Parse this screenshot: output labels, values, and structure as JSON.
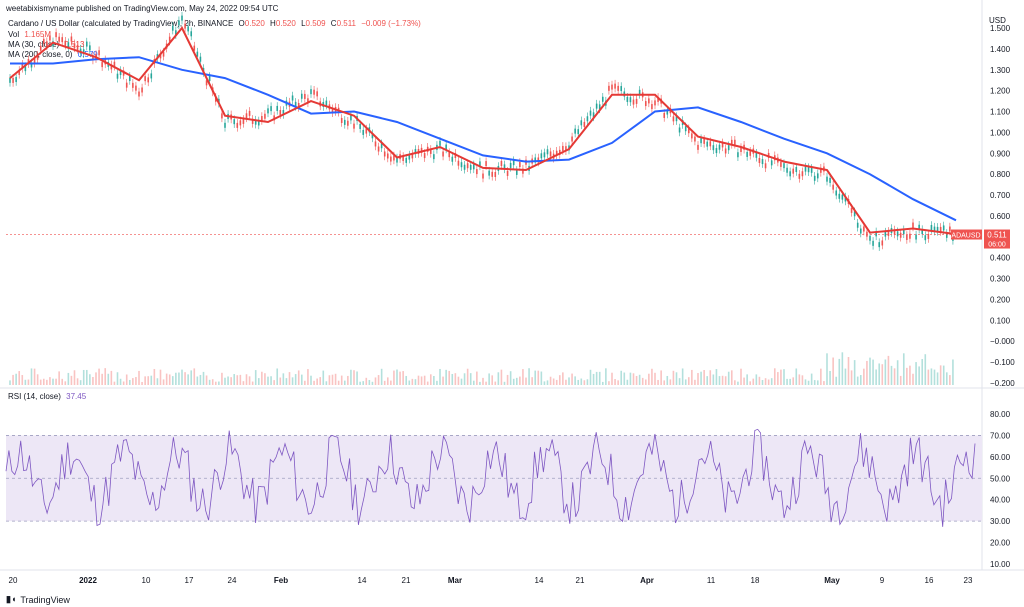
{
  "header": {
    "published_line": "weetabixismyname published on TradingView.com, May 24, 2022 09:54 UTC"
  },
  "legend": {
    "title": "Cardano / US Dollar (calculated by TradingView), 2h, BINANCE",
    "o_label": "O",
    "o": "0.520",
    "h_label": "H",
    "h": "0.520",
    "l_label": "L",
    "l": "0.509",
    "c_label": "C",
    "c": "0.511",
    "chg": "−0.009 (−1.73%)",
    "vol_label": "Vol",
    "vol": "1.165M",
    "ma30_label": "MA (30, close)",
    "ma30": "0.513",
    "ma200_label": "MA (200, close, 0)",
    "ma200": "0.579",
    "rsi_label": "RSI (14, close)",
    "rsi": "37.45"
  },
  "price_tag": {
    "symbol": "ADAUSD",
    "price": "0.511",
    "countdown": "06:00"
  },
  "colors": {
    "ma30": "#e53935",
    "ma200": "#2962ff",
    "rsi": "#7e57c2",
    "up": "#26a69a",
    "down": "#ef5350",
    "rsi_band": "#ede7f6"
  },
  "footer": {
    "brand": "TradingView"
  },
  "chart_data": {
    "type": "line",
    "currency_label": "USD",
    "x_ticks": [
      "20",
      "2022",
      "10",
      "17",
      "24",
      "Feb",
      "14",
      "21",
      "Mar",
      "14",
      "21",
      "Apr",
      "11",
      "18",
      "May",
      "9",
      "16",
      "23"
    ],
    "price_axis": {
      "ticks": [
        "1.500",
        "1.400",
        "1.300",
        "1.200",
        "1.100",
        "1.000",
        "0.900",
        "0.800",
        "0.700",
        "0.600",
        "0.500",
        "0.400",
        "0.300",
        "0.200",
        "0.100",
        "−0.000",
        "−0.100",
        "−0.200"
      ],
      "ylim": [
        -0.2,
        1.5
      ]
    },
    "rsi_axis": {
      "ticks": [
        "80.00",
        "70.00",
        "60.00",
        "50.00",
        "40.00",
        "30.00",
        "20.00",
        "10.00"
      ],
      "ylim": [
        10,
        80
      ],
      "band": [
        30,
        70
      ]
    },
    "series": [
      {
        "name": "ADAUSD",
        "x": [
          "Dec 20",
          "Dec 27",
          "Jan 3",
          "Jan 10",
          "Jan 17",
          "Jan 24",
          "Jan 31",
          "Feb 7",
          "Feb 14",
          "Feb 21",
          "Feb 28",
          "Mar 7",
          "Mar 14",
          "Mar 21",
          "Mar 28",
          "Apr 4",
          "Apr 11",
          "Apr 18",
          "Apr 25",
          "May 2",
          "May 9",
          "May 16",
          "May 23"
        ],
        "values": [
          1.25,
          1.45,
          1.38,
          1.2,
          1.55,
          1.05,
          1.08,
          1.18,
          1.05,
          0.87,
          0.92,
          0.82,
          0.83,
          0.95,
          1.2,
          1.15,
          0.95,
          0.92,
          0.83,
          0.8,
          0.48,
          0.53,
          0.511
        ]
      },
      {
        "name": "MA (30, close)",
        "x": [
          "Dec 20",
          "Dec 27",
          "Jan 3",
          "Jan 10",
          "Jan 17",
          "Jan 24",
          "Jan 31",
          "Feb 7",
          "Feb 14",
          "Feb 21",
          "Feb 28",
          "Mar 7",
          "Mar 14",
          "Mar 21",
          "Mar 28",
          "Apr 4",
          "Apr 11",
          "Apr 18",
          "Apr 25",
          "May 2",
          "May 9",
          "May 16",
          "May 23"
        ],
        "values": [
          1.26,
          1.43,
          1.36,
          1.25,
          1.5,
          1.08,
          1.05,
          1.15,
          1.08,
          0.88,
          0.93,
          0.83,
          0.82,
          0.92,
          1.18,
          1.18,
          0.98,
          0.93,
          0.86,
          0.82,
          0.52,
          0.54,
          0.513
        ]
      },
      {
        "name": "MA (200, close, 0)",
        "x": [
          "Dec 20",
          "Dec 27",
          "Jan 3",
          "Jan 10",
          "Jan 17",
          "Jan 24",
          "Jan 31",
          "Feb 7",
          "Feb 14",
          "Feb 21",
          "Feb 28",
          "Mar 7",
          "Mar 14",
          "Mar 21",
          "Mar 28",
          "Apr 4",
          "Apr 11",
          "Apr 18",
          "Apr 25",
          "May 2",
          "May 9",
          "May 16",
          "May 23"
        ],
        "values": [
          1.33,
          1.33,
          1.35,
          1.36,
          1.3,
          1.26,
          1.18,
          1.09,
          1.1,
          1.05,
          0.97,
          0.89,
          0.86,
          0.87,
          0.95,
          1.1,
          1.12,
          1.05,
          0.97,
          0.9,
          0.8,
          0.68,
          0.579
        ]
      }
    ]
  }
}
